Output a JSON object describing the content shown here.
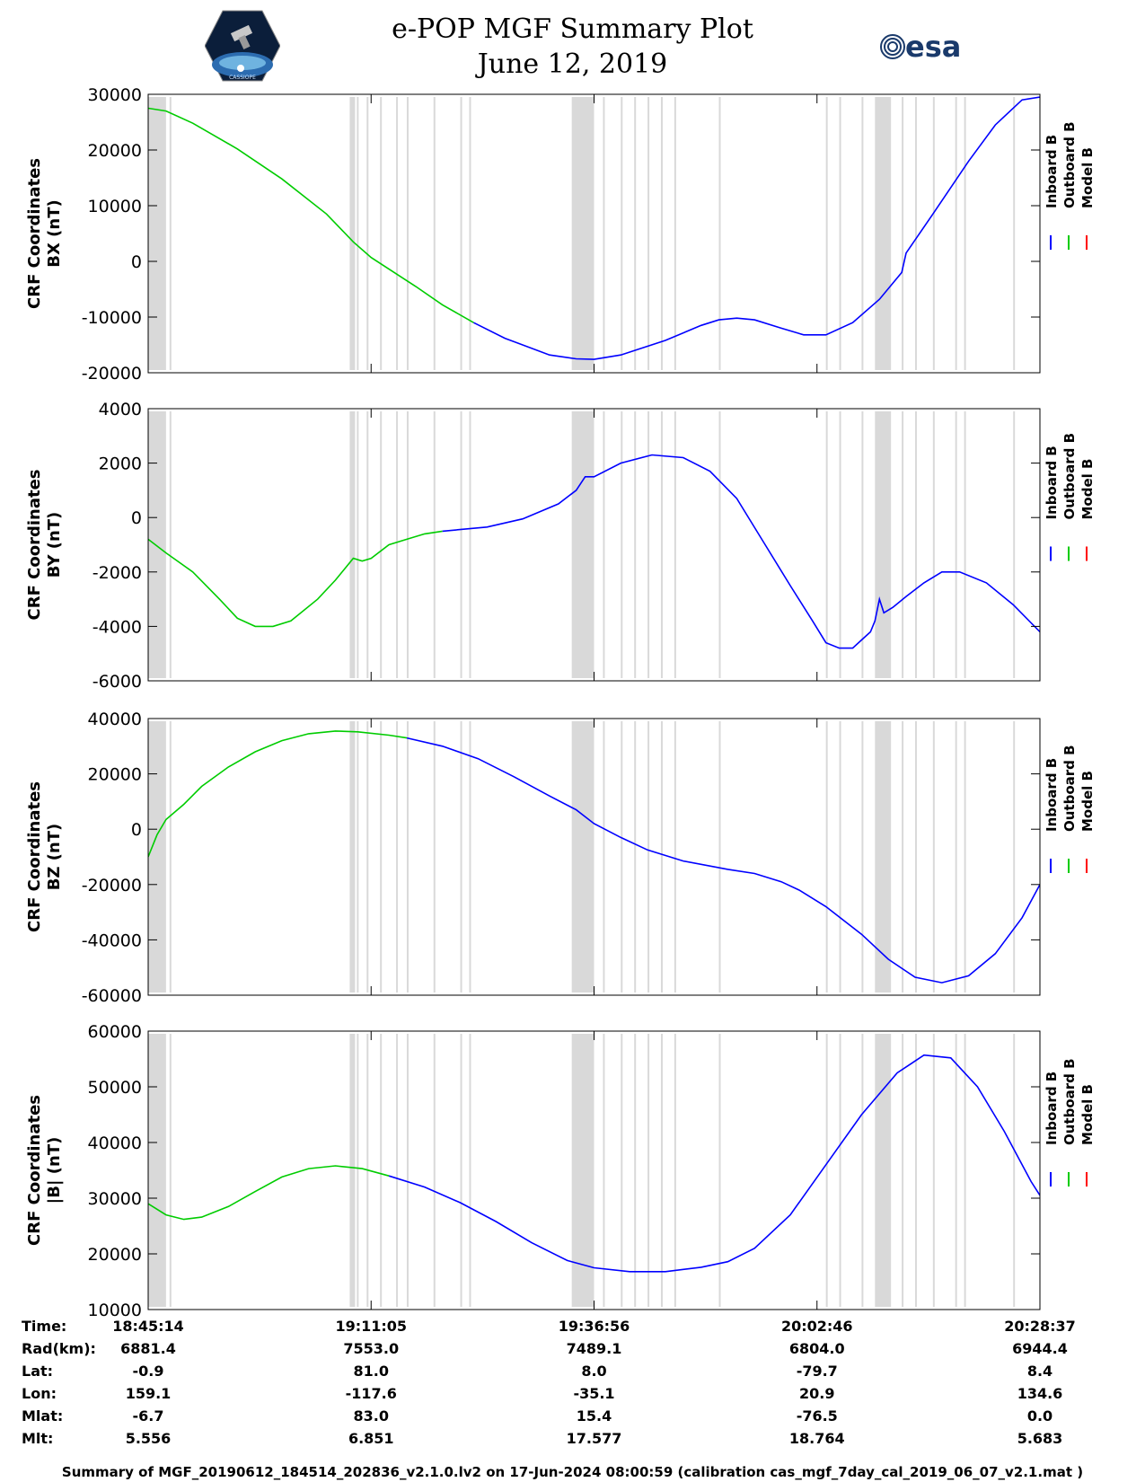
{
  "header": {
    "title_line1": "e-POP MGF Summary Plot",
    "title_line2": "June 12, 2019",
    "left_logo_text": "CASSIOPE",
    "right_logo_text": "esa"
  },
  "legend_labels": [
    "Inboard B",
    "Outboard B",
    "Model B"
  ],
  "colors": {
    "inboard": "#0000ff",
    "outboard": "#00cc00",
    "model": "#ff0000",
    "gap": "#d9d9d9"
  },
  "chart_data": [
    {
      "type": "line",
      "ylabel_line1": "CRF Coordinates",
      "ylabel_line2": "BX (nT)",
      "ylim": [
        -20000,
        30000
      ],
      "yticks": [
        30000,
        20000,
        10000,
        0,
        -10000,
        -20000
      ],
      "series": [
        {
          "name": "Outboard B",
          "points": [
            [
              0,
              27500
            ],
            [
              0.02,
              27000
            ],
            [
              0.05,
              24800
            ],
            [
              0.1,
              20200
            ],
            [
              0.15,
              14800
            ],
            [
              0.2,
              8500
            ],
            [
              0.23,
              3500
            ],
            [
              0.25,
              700
            ],
            [
              0.3,
              -4500
            ],
            [
              0.33,
              -7800
            ],
            [
              0.365,
              -11000
            ]
          ]
        },
        {
          "name": "Inboard B",
          "points": [
            [
              0.365,
              -11000
            ],
            [
              0.4,
              -13800
            ],
            [
              0.45,
              -16800
            ],
            [
              0.48,
              -17500
            ],
            [
              0.5,
              -17600
            ],
            [
              0.53,
              -16800
            ],
            [
              0.58,
              -14200
            ],
            [
              0.62,
              -11500
            ],
            [
              0.64,
              -10500
            ],
            [
              0.66,
              -10200
            ],
            [
              0.68,
              -10500
            ],
            [
              0.71,
              -12000
            ],
            [
              0.735,
              -13200
            ],
            [
              0.76,
              -13200
            ],
            [
              0.79,
              -11000
            ],
            [
              0.82,
              -6800
            ],
            [
              0.845,
              -2000
            ],
            [
              0.85,
              1500
            ],
            [
              0.88,
              8500
            ],
            [
              0.92,
              18000
            ],
            [
              0.95,
              24500
            ],
            [
              0.98,
              29000
            ],
            [
              1.0,
              29500
            ],
            [
              1.03,
              28500
            ]
          ]
        }
      ]
    },
    {
      "type": "line",
      "ylabel_line1": "CRF Coordinates",
      "ylabel_line2": "BY (nT)",
      "ylim": [
        -6000,
        4000
      ],
      "yticks": [
        4000,
        2000,
        0,
        -2000,
        -4000,
        -6000
      ],
      "series": [
        {
          "name": "Outboard B",
          "points": [
            [
              0,
              -800
            ],
            [
              0.02,
              -1300
            ],
            [
              0.05,
              -2000
            ],
            [
              0.08,
              -3000
            ],
            [
              0.1,
              -3700
            ],
            [
              0.12,
              -4000
            ],
            [
              0.14,
              -4000
            ],
            [
              0.16,
              -3800
            ],
            [
              0.19,
              -3000
            ],
            [
              0.21,
              -2300
            ],
            [
              0.23,
              -1500
            ],
            [
              0.24,
              -1600
            ],
            [
              0.25,
              -1500
            ],
            [
              0.27,
              -1000
            ],
            [
              0.29,
              -800
            ],
            [
              0.31,
              -600
            ],
            [
              0.33,
              -500
            ]
          ]
        },
        {
          "name": "Inboard B",
          "points": [
            [
              0.33,
              -500
            ],
            [
              0.38,
              -350
            ],
            [
              0.42,
              -50
            ],
            [
              0.46,
              500
            ],
            [
              0.48,
              1000
            ],
            [
              0.49,
              1500
            ],
            [
              0.5,
              1500
            ],
            [
              0.53,
              2000
            ],
            [
              0.565,
              2300
            ],
            [
              0.6,
              2200
            ],
            [
              0.63,
              1700
            ],
            [
              0.66,
              700
            ],
            [
              0.69,
              -900
            ],
            [
              0.72,
              -2500
            ],
            [
              0.745,
              -3800
            ],
            [
              0.76,
              -4600
            ],
            [
              0.775,
              -4800
            ],
            [
              0.79,
              -4800
            ],
            [
              0.8,
              -4500
            ],
            [
              0.81,
              -4200
            ],
            [
              0.815,
              -3800
            ],
            [
              0.82,
              -3000
            ],
            [
              0.825,
              -3500
            ],
            [
              0.835,
              -3300
            ],
            [
              0.85,
              -2900
            ],
            [
              0.87,
              -2400
            ],
            [
              0.89,
              -2000
            ],
            [
              0.91,
              -2000
            ],
            [
              0.94,
              -2400
            ],
            [
              0.97,
              -3200
            ],
            [
              1.0,
              -4200
            ]
          ]
        }
      ]
    },
    {
      "type": "line",
      "ylabel_line1": "CRF Coordinates",
      "ylabel_line2": "BZ (nT)",
      "ylim": [
        -60000,
        40000
      ],
      "yticks": [
        40000,
        20000,
        0,
        -20000,
        -40000,
        -60000
      ],
      "series": [
        {
          "name": "Outboard B",
          "points": [
            [
              0,
              -10000
            ],
            [
              0.01,
              -2000
            ],
            [
              0.02,
              3500
            ],
            [
              0.04,
              9000
            ],
            [
              0.06,
              15500
            ],
            [
              0.09,
              22500
            ],
            [
              0.12,
              28000
            ],
            [
              0.15,
              32000
            ],
            [
              0.18,
              34500
            ],
            [
              0.21,
              35500
            ],
            [
              0.235,
              35200
            ],
            [
              0.27,
              34000
            ],
            [
              0.29,
              33000
            ]
          ]
        },
        {
          "name": "Inboard B",
          "points": [
            [
              0.29,
              33000
            ],
            [
              0.33,
              30000
            ],
            [
              0.37,
              25500
            ],
            [
              0.41,
              19000
            ],
            [
              0.45,
              12000
            ],
            [
              0.48,
              7000
            ],
            [
              0.5,
              2000
            ],
            [
              0.53,
              -3000
            ],
            [
              0.56,
              -7500
            ],
            [
              0.6,
              -11500
            ],
            [
              0.65,
              -14500
            ],
            [
              0.68,
              -16000
            ],
            [
              0.71,
              -19000
            ],
            [
              0.73,
              -22000
            ],
            [
              0.76,
              -28000
            ],
            [
              0.8,
              -38000
            ],
            [
              0.83,
              -47000
            ],
            [
              0.86,
              -53500
            ],
            [
              0.89,
              -55500
            ],
            [
              0.92,
              -53000
            ],
            [
              0.95,
              -45000
            ],
            [
              0.98,
              -32000
            ],
            [
              1.0,
              -20000
            ],
            [
              1.05,
              1000
            ]
          ]
        }
      ]
    },
    {
      "type": "line",
      "ylabel_line1": "CRF Coordinates",
      "ylabel_line2": "|B| (nT)",
      "ylim": [
        10000,
        60000
      ],
      "yticks": [
        60000,
        50000,
        40000,
        30000,
        20000,
        10000
      ],
      "series": [
        {
          "name": "Outboard B",
          "points": [
            [
              0,
              29000
            ],
            [
              0.02,
              27000
            ],
            [
              0.04,
              26200
            ],
            [
              0.06,
              26600
            ],
            [
              0.09,
              28500
            ],
            [
              0.12,
              31200
            ],
            [
              0.15,
              33800
            ],
            [
              0.18,
              35300
            ],
            [
              0.21,
              35800
            ],
            [
              0.24,
              35300
            ],
            [
              0.27,
              34000
            ]
          ]
        },
        {
          "name": "Inboard B",
          "points": [
            [
              0.27,
              34000
            ],
            [
              0.31,
              32000
            ],
            [
              0.35,
              29200
            ],
            [
              0.39,
              25800
            ],
            [
              0.43,
              22000
            ],
            [
              0.47,
              18800
            ],
            [
              0.5,
              17500
            ],
            [
              0.54,
              16800
            ],
            [
              0.58,
              16800
            ],
            [
              0.62,
              17600
            ],
            [
              0.65,
              18600
            ],
            [
              0.68,
              21000
            ],
            [
              0.72,
              27000
            ],
            [
              0.76,
              36000
            ],
            [
              0.8,
              45000
            ],
            [
              0.84,
              52500
            ],
            [
              0.87,
              55700
            ],
            [
              0.9,
              55200
            ],
            [
              0.93,
              50000
            ],
            [
              0.96,
              42000
            ],
            [
              0.99,
              33000
            ],
            [
              1.0,
              30500
            ],
            [
              1.03,
              28500
            ]
          ]
        }
      ]
    }
  ],
  "gap_bands_fraction": [
    [
      0.0,
      0.02
    ],
    [
      0.024,
      0.026
    ],
    [
      0.226,
      0.232
    ],
    [
      0.234,
      0.236
    ],
    [
      0.245,
      0.247
    ],
    [
      0.26,
      0.262
    ],
    [
      0.278,
      0.28
    ],
    [
      0.29,
      0.292
    ],
    [
      0.32,
      0.322
    ],
    [
      0.35,
      0.352
    ],
    [
      0.36,
      0.362
    ],
    [
      0.475,
      0.5
    ],
    [
      0.51,
      0.512
    ],
    [
      0.53,
      0.532
    ],
    [
      0.545,
      0.547
    ],
    [
      0.56,
      0.562
    ],
    [
      0.575,
      0.577
    ],
    [
      0.59,
      0.592
    ],
    [
      0.64,
      0.642
    ],
    [
      0.76,
      0.762
    ],
    [
      0.775,
      0.777
    ],
    [
      0.8,
      0.802
    ],
    [
      0.815,
      0.833
    ],
    [
      0.845,
      0.847
    ],
    [
      0.86,
      0.862
    ],
    [
      0.88,
      0.882
    ],
    [
      0.905,
      0.907
    ],
    [
      0.915,
      0.917
    ],
    [
      0.97,
      0.972
    ]
  ],
  "ephemeris": {
    "row_labels": [
      "Time:",
      "Rad(km):",
      "Lat:",
      "Lon:",
      "Mlat:",
      "Mlt:"
    ],
    "columns": [
      [
        "18:45:14",
        "6881.4",
        "-0.9",
        "159.1",
        "-6.7",
        "5.556"
      ],
      [
        "19:11:05",
        "7553.0",
        "81.0",
        "-117.6",
        "83.0",
        "6.851"
      ],
      [
        "19:36:56",
        "7489.1",
        "8.0",
        "-35.1",
        "15.4",
        "17.577"
      ],
      [
        "20:02:46",
        "6804.0",
        "-79.7",
        "20.9",
        "-76.5",
        "18.764"
      ],
      [
        "20:28:37",
        "6944.4",
        "8.4",
        "134.6",
        "0.0",
        "5.683"
      ]
    ]
  },
  "footer": "Summary of MGF_20190612_184514_202836_v2.1.0.lv2 on 17-Jun-2024 08:00:59 (calibration cas_mgf_7day_cal_2019_06_07_v2.1.mat )"
}
